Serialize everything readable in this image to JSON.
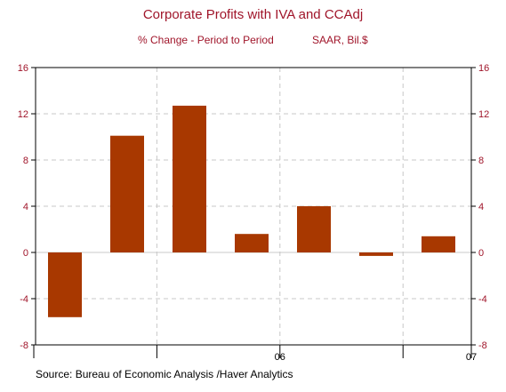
{
  "chart_data": {
    "type": "bar",
    "title": "Corporate Profits with IVA and CCAdj",
    "subtitle_left": "% Change - Period to Period",
    "subtitle_right": "SAAR, Bil.$",
    "source": "Source:  Bureau of Economic Analysis /Haver Analytics",
    "values": [
      -5.6,
      10.1,
      12.7,
      1.6,
      4.0,
      -0.3,
      1.4
    ],
    "ylim": [
      -8,
      16
    ],
    "yticks": [
      -8,
      -4,
      0,
      4,
      8,
      12,
      16
    ],
    "x_tick_labels": [
      {
        "label": "06",
        "boundary": 4
      },
      {
        "label": "07",
        "boundary": 8
      }
    ],
    "bar_color": "#a83800",
    "grid": true,
    "legend": "none"
  }
}
